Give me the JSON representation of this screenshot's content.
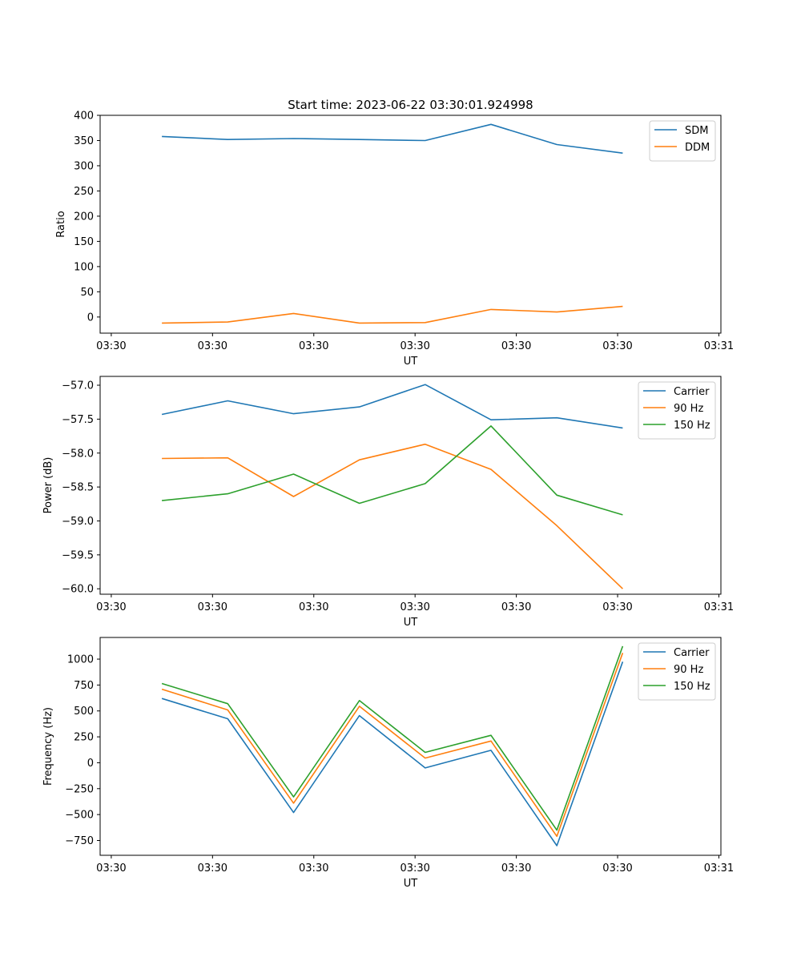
{
  "figure": {
    "title": "Start time: 2023-06-22 03:30:01.924998"
  },
  "chart_data": [
    {
      "type": "line",
      "xlabel": "UT",
      "ylabel": "Ratio",
      "ylim": [
        -32,
        400
      ],
      "yticks": [
        0,
        50,
        100,
        150,
        200,
        250,
        300,
        350,
        400
      ],
      "xticks": [
        {
          "x": 0,
          "label": "03:30"
        },
        {
          "x": 1,
          "label": "03:30"
        },
        {
          "x": 2,
          "label": "03:30"
        },
        {
          "x": 3,
          "label": "03:30"
        },
        {
          "x": 4,
          "label": "03:30"
        },
        {
          "x": 5,
          "label": "03:30"
        },
        {
          "x": 6,
          "label": "03:31"
        }
      ],
      "xlim": [
        -0.11,
        6.02
      ],
      "legend": "top-right",
      "x": [
        0.5,
        1.15,
        1.8,
        2.45,
        3.1,
        3.75,
        4.4,
        5.05
      ],
      "series": [
        {
          "name": "SDM",
          "color": "#1f77b4",
          "values": [
            358,
            352,
            354,
            352,
            350,
            382,
            342,
            325
          ]
        },
        {
          "name": "DDM",
          "color": "#ff7f0e",
          "values": [
            -12,
            -10,
            7,
            -12,
            -11,
            15,
            10,
            21
          ]
        }
      ]
    },
    {
      "type": "line",
      "xlabel": "UT",
      "ylabel": "Power (dB)",
      "ylim": [
        -60.08,
        -56.87
      ],
      "yticks": [
        -60.0,
        -59.5,
        -59.0,
        -58.5,
        -58.0,
        -57.5,
        -57.0
      ],
      "ytick_labels": [
        "−60.0",
        "−59.5",
        "−59.0",
        "−58.5",
        "−58.0",
        "−57.5",
        "−57.0"
      ],
      "xticks": [
        {
          "x": 0,
          "label": "03:30"
        },
        {
          "x": 1,
          "label": "03:30"
        },
        {
          "x": 2,
          "label": "03:30"
        },
        {
          "x": 3,
          "label": "03:30"
        },
        {
          "x": 4,
          "label": "03:30"
        },
        {
          "x": 5,
          "label": "03:30"
        },
        {
          "x": 6,
          "label": "03:31"
        }
      ],
      "xlim": [
        -0.11,
        6.02
      ],
      "legend": "top-right",
      "x": [
        0.5,
        1.15,
        1.8,
        2.45,
        3.1,
        3.75,
        4.4,
        5.05
      ],
      "series": [
        {
          "name": "Carrier",
          "color": "#1f77b4",
          "values": [
            -57.43,
            -57.23,
            -57.42,
            -57.32,
            -56.99,
            -57.51,
            -57.48,
            -57.63
          ]
        },
        {
          "name": "90 Hz",
          "color": "#ff7f0e",
          "values": [
            -58.08,
            -58.07,
            -58.64,
            -58.1,
            -57.87,
            -58.24,
            -59.07,
            -60.0
          ]
        },
        {
          "name": "150 Hz",
          "color": "#2ca02c",
          "values": [
            -58.7,
            -58.6,
            -58.31,
            -58.74,
            -58.45,
            -57.6,
            -58.62,
            -58.91
          ]
        }
      ]
    },
    {
      "type": "line",
      "xlabel": "UT",
      "ylabel": "Frequency (Hz)",
      "ylim": [
        -893,
        1209
      ],
      "yticks": [
        -750,
        -500,
        -250,
        0,
        250,
        500,
        750,
        1000
      ],
      "ytick_labels": [
        "−750",
        "−500",
        "−250",
        "0",
        "250",
        "500",
        "750",
        "1000"
      ],
      "xticks": [
        {
          "x": 0,
          "label": "03:30"
        },
        {
          "x": 1,
          "label": "03:30"
        },
        {
          "x": 2,
          "label": "03:30"
        },
        {
          "x": 3,
          "label": "03:30"
        },
        {
          "x": 4,
          "label": "03:30"
        },
        {
          "x": 5,
          "label": "03:30"
        },
        {
          "x": 6,
          "label": "03:31"
        }
      ],
      "xlim": [
        -0.11,
        6.02
      ],
      "legend": "top-right",
      "x": [
        0.5,
        1.15,
        1.8,
        2.45,
        3.1,
        3.75,
        4.4,
        5.05
      ],
      "series": [
        {
          "name": "Carrier",
          "color": "#1f77b4",
          "values": [
            620,
            425,
            -480,
            455,
            -50,
            120,
            -800,
            975
          ]
        },
        {
          "name": "90 Hz",
          "color": "#ff7f0e",
          "values": [
            710,
            510,
            -390,
            545,
            45,
            210,
            -710,
            1060
          ]
        },
        {
          "name": "150 Hz",
          "color": "#2ca02c",
          "values": [
            765,
            570,
            -330,
            600,
            100,
            265,
            -650,
            1125
          ]
        }
      ]
    }
  ]
}
